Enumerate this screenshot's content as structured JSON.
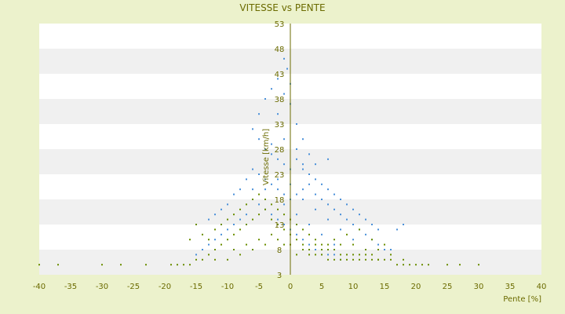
{
  "chart_data": {
    "type": "scatter",
    "title": "VITESSE vs PENTE",
    "xlabel": "Pente [%]",
    "ylabel": "Vitesse [km/h]",
    "xlim": [
      -40,
      40
    ],
    "ylim": [
      3,
      53
    ],
    "x_ticks": [
      -40,
      -35,
      -30,
      -25,
      -20,
      -15,
      -10,
      -5,
      0,
      5,
      10,
      15,
      20,
      25,
      30,
      35,
      40
    ],
    "y_ticks": [
      3,
      8,
      13,
      18,
      23,
      28,
      33,
      38,
      43,
      48,
      53
    ],
    "y_tick_labels": [
      "3",
      "8",
      "13",
      "18",
      "23",
      "28",
      "33",
      "38",
      "43",
      "48",
      "53"
    ],
    "grid": "horizontal alternating bands",
    "legend": "none",
    "series": [
      {
        "color": "#4a90d9",
        "points": [
          [
            -6,
            32
          ],
          [
            -5,
            35
          ],
          [
            -4,
            38
          ],
          [
            -3,
            40
          ],
          [
            -2,
            42
          ],
          [
            -1,
            46
          ],
          [
            -0.5,
            44
          ],
          [
            0,
            41
          ],
          [
            1,
            33
          ],
          [
            2,
            30
          ],
          [
            -5,
            30
          ],
          [
            -4,
            28
          ],
          [
            -3,
            27
          ],
          [
            -2,
            26
          ],
          [
            -1,
            25
          ],
          [
            0,
            24
          ],
          [
            1,
            26
          ],
          [
            2,
            25
          ],
          [
            3,
            23
          ],
          [
            4,
            22
          ],
          [
            5,
            21
          ],
          [
            6,
            20
          ],
          [
            7,
            19
          ],
          [
            8,
            18
          ],
          [
            9,
            17
          ],
          [
            10,
            16
          ],
          [
            11,
            15
          ],
          [
            12,
            14
          ],
          [
            13,
            13
          ],
          [
            14,
            12
          ],
          [
            -7,
            22
          ],
          [
            -8,
            20
          ],
          [
            -9,
            19
          ],
          [
            -10,
            17
          ],
          [
            -11,
            16
          ],
          [
            -12,
            15
          ],
          [
            -13,
            14
          ],
          [
            -6,
            24
          ],
          [
            -5,
            23
          ],
          [
            -4,
            22
          ],
          [
            -3,
            21
          ],
          [
            -2,
            20
          ],
          [
            -1,
            19
          ],
          [
            0,
            18
          ],
          [
            1,
            19
          ],
          [
            2,
            20
          ],
          [
            3,
            21
          ],
          [
            4,
            19
          ],
          [
            5,
            18
          ],
          [
            6,
            17
          ],
          [
            7,
            16
          ],
          [
            8,
            15
          ],
          [
            9,
            14
          ],
          [
            10,
            13
          ],
          [
            11,
            12
          ],
          [
            12,
            11
          ],
          [
            13,
            10
          ],
          [
            14,
            9
          ],
          [
            15,
            8
          ],
          [
            16,
            8
          ],
          [
            -6,
            18
          ],
          [
            -5,
            17
          ],
          [
            -4,
            16
          ],
          [
            -3,
            15
          ],
          [
            -2,
            14
          ],
          [
            -1,
            13
          ],
          [
            0,
            12
          ],
          [
            1,
            11
          ],
          [
            2,
            10
          ],
          [
            3,
            9
          ],
          [
            4,
            8
          ],
          [
            5,
            7
          ],
          [
            6,
            7
          ],
          [
            7,
            7
          ],
          [
            8,
            6
          ],
          [
            -7,
            15
          ],
          [
            -8,
            14
          ],
          [
            -9,
            13
          ],
          [
            -10,
            12
          ],
          [
            -11,
            11
          ],
          [
            -12,
            10
          ],
          [
            -13,
            9
          ],
          [
            -14,
            8
          ],
          [
            -15,
            7
          ],
          [
            17,
            12
          ],
          [
            18,
            13
          ],
          [
            -6,
            20
          ],
          [
            -4,
            20
          ],
          [
            -2,
            22
          ],
          [
            0,
            21
          ],
          [
            2,
            18
          ],
          [
            4,
            16
          ],
          [
            6,
            14
          ],
          [
            8,
            12
          ],
          [
            10,
            10
          ],
          [
            -1,
            17
          ],
          [
            1,
            15
          ],
          [
            3,
            13
          ],
          [
            5,
            11
          ],
          [
            7,
            9
          ],
          [
            -3,
            29
          ],
          [
            -1,
            30
          ],
          [
            1,
            28
          ],
          [
            3,
            27
          ],
          [
            -2,
            35
          ],
          [
            0,
            37
          ],
          [
            -1,
            39
          ],
          [
            2,
            24
          ],
          [
            4,
            25
          ],
          [
            6,
            26
          ]
        ]
      },
      {
        "color": "#6b8e00",
        "points": [
          [
            -40,
            5
          ],
          [
            -37,
            5
          ],
          [
            -30,
            5
          ],
          [
            -27,
            5
          ],
          [
            -23,
            5
          ],
          [
            -19,
            5
          ],
          [
            -18,
            5
          ],
          [
            -17,
            5
          ],
          [
            -16,
            5
          ],
          [
            -15,
            6
          ],
          [
            -14,
            6
          ],
          [
            -13,
            7
          ],
          [
            -12,
            8
          ],
          [
            -11,
            9
          ],
          [
            -10,
            10
          ],
          [
            -9,
            11
          ],
          [
            -8,
            12
          ],
          [
            -7,
            13
          ],
          [
            -6,
            14
          ],
          [
            -5,
            15
          ],
          [
            -4,
            16
          ],
          [
            -3,
            14
          ],
          [
            -2,
            13
          ],
          [
            -1,
            12
          ],
          [
            0,
            11
          ],
          [
            1,
            10
          ],
          [
            2,
            9
          ],
          [
            3,
            8
          ],
          [
            4,
            7
          ],
          [
            5,
            7
          ],
          [
            6,
            6
          ],
          [
            7,
            6
          ],
          [
            8,
            6
          ],
          [
            9,
            6
          ],
          [
            10,
            6
          ],
          [
            11,
            6
          ],
          [
            12,
            6
          ],
          [
            13,
            6
          ],
          [
            14,
            6
          ],
          [
            15,
            6
          ],
          [
            16,
            6
          ],
          [
            17,
            5
          ],
          [
            18,
            5
          ],
          [
            19,
            5
          ],
          [
            20,
            5
          ],
          [
            21,
            5
          ],
          [
            22,
            5
          ],
          [
            25,
            5
          ],
          [
            27,
            5
          ],
          [
            30,
            5
          ],
          [
            -15,
            13
          ],
          [
            -14,
            11
          ],
          [
            -13,
            10
          ],
          [
            -12,
            12
          ],
          [
            -11,
            13
          ],
          [
            -10,
            14
          ],
          [
            -9,
            15
          ],
          [
            -8,
            16
          ],
          [
            -7,
            17
          ],
          [
            -6,
            18
          ],
          [
            -5,
            19
          ],
          [
            -4,
            18
          ],
          [
            -3,
            17
          ],
          [
            -2,
            16
          ],
          [
            -1,
            15
          ],
          [
            0,
            14
          ],
          [
            1,
            13
          ],
          [
            2,
            12
          ],
          [
            3,
            11
          ],
          [
            4,
            10
          ],
          [
            5,
            9
          ],
          [
            6,
            8
          ],
          [
            7,
            8
          ],
          [
            8,
            7
          ],
          [
            9,
            7
          ],
          [
            10,
            7
          ],
          [
            11,
            7
          ],
          [
            12,
            7
          ],
          [
            13,
            7
          ],
          [
            14,
            6
          ],
          [
            -12,
            6
          ],
          [
            -10,
            6
          ],
          [
            -8,
            7
          ],
          [
            -6,
            8
          ],
          [
            -4,
            9
          ],
          [
            -2,
            10
          ],
          [
            0,
            9
          ],
          [
            2,
            8
          ],
          [
            4,
            9
          ],
          [
            6,
            9
          ],
          [
            8,
            9
          ],
          [
            10,
            9
          ],
          [
            12,
            8
          ],
          [
            14,
            8
          ],
          [
            16,
            7
          ],
          [
            18,
            6
          ],
          [
            -9,
            8
          ],
          [
            -7,
            9
          ],
          [
            -5,
            10
          ],
          [
            -3,
            11
          ],
          [
            -1,
            9
          ],
          [
            1,
            7
          ],
          [
            3,
            7
          ],
          [
            5,
            8
          ],
          [
            7,
            10
          ],
          [
            9,
            11
          ],
          [
            11,
            12
          ],
          [
            13,
            10
          ],
          [
            15,
            9
          ],
          [
            -16,
            10
          ]
        ]
      }
    ]
  }
}
